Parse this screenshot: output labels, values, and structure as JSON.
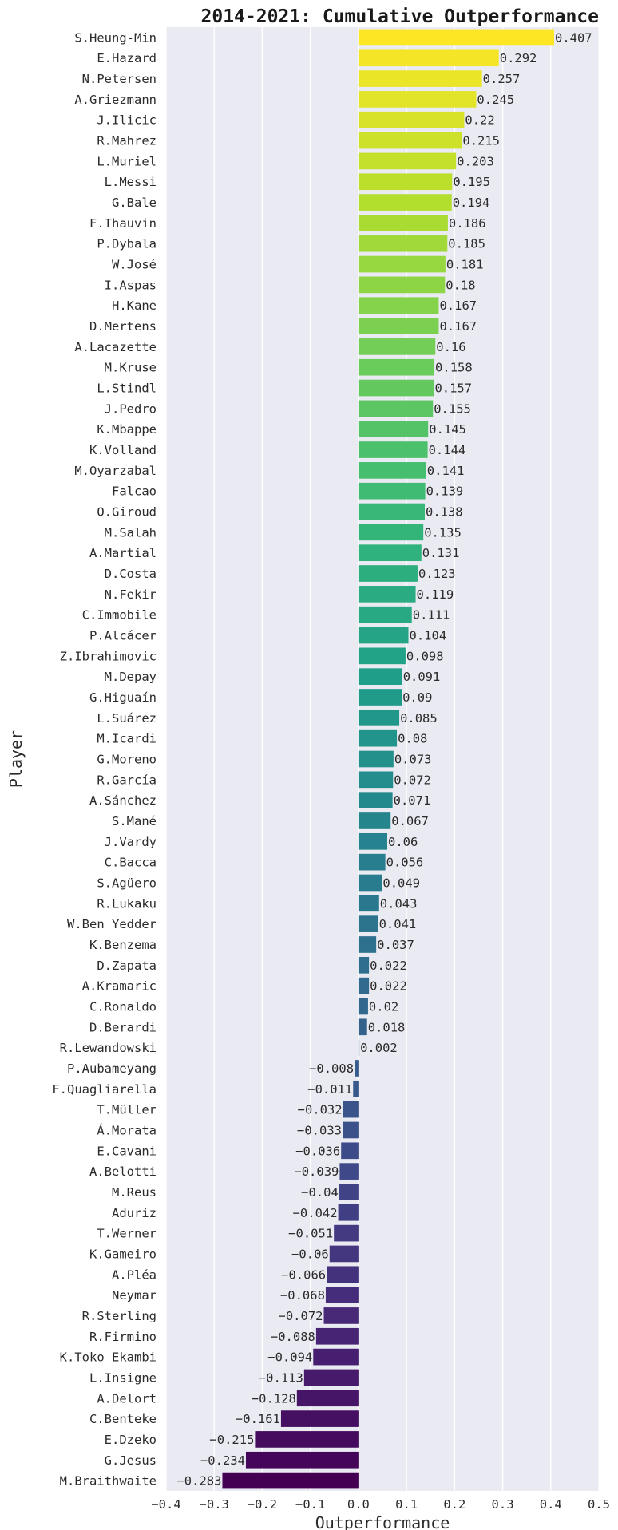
{
  "chart_data": {
    "type": "bar",
    "orientation": "horizontal",
    "title": "2014-2021: Cumulative Outperformance",
    "xlabel": "Outperformance",
    "ylabel": "Player",
    "xlim": [
      -0.4,
      0.5
    ],
    "xticks": [
      -0.4,
      -0.3,
      -0.2,
      -0.1,
      0.0,
      0.1,
      0.2,
      0.3,
      0.4,
      0.5
    ],
    "xtick_labels": [
      "−0.4",
      "−0.3",
      "−0.2",
      "−0.1",
      "0.0",
      "0.1",
      "0.2",
      "0.3",
      "0.4",
      "0.5"
    ],
    "grid": true,
    "background": "#eaeaf2",
    "colormap": "viridis",
    "categories": [
      "S.Heung-Min",
      "E.Hazard",
      "N.Petersen",
      "A.Griezmann",
      "J.Ilicic",
      "R.Mahrez",
      "L.Muriel",
      "L.Messi",
      "G.Bale",
      "F.Thauvin",
      "P.Dybala",
      "W.José",
      "I.Aspas",
      "H.Kane",
      "D.Mertens",
      "A.Lacazette",
      "M.Kruse",
      "L.Stindl",
      "J.Pedro",
      "K.Mbappe",
      "K.Volland",
      "M.Oyarzabal",
      "Falcao",
      "O.Giroud",
      "M.Salah",
      "A.Martial",
      "D.Costa",
      "N.Fekir",
      "C.Immobile",
      "P.Alcácer",
      "Z.Ibrahimovic",
      "M.Depay",
      "G.Higuaín",
      "L.Suárez",
      "M.Icardi",
      "G.Moreno",
      "R.García",
      "A.Sánchez",
      "S.Mané",
      "J.Vardy",
      "C.Bacca",
      "S.Agüero",
      "R.Lukaku",
      "W.Ben Yedder",
      "K.Benzema",
      "D.Zapata",
      "A.Kramaric",
      "C.Ronaldo",
      "D.Berardi",
      "R.Lewandowski",
      "P.Aubameyang",
      "F.Quagliarella",
      "T.Müller",
      "Á.Morata",
      "E.Cavani",
      "A.Belotti",
      "M.Reus",
      "Aduriz",
      "T.Werner",
      "K.Gameiro",
      "A.Pléa",
      "Neymar",
      "R.Sterling",
      "R.Firmino",
      "K.Toko Ekambi",
      "L.Insigne",
      "A.Delort",
      "C.Benteke",
      "E.Dzeko",
      "G.Jesus",
      "M.Braithwaite"
    ],
    "values": [
      0.407,
      0.292,
      0.257,
      0.245,
      0.22,
      0.215,
      0.203,
      0.195,
      0.194,
      0.186,
      0.185,
      0.181,
      0.18,
      0.167,
      0.167,
      0.16,
      0.158,
      0.157,
      0.155,
      0.145,
      0.144,
      0.141,
      0.139,
      0.138,
      0.135,
      0.131,
      0.123,
      0.119,
      0.111,
      0.104,
      0.098,
      0.091,
      0.09,
      0.085,
      0.08,
      0.073,
      0.072,
      0.071,
      0.067,
      0.06,
      0.056,
      0.049,
      0.043,
      0.041,
      0.037,
      0.022,
      0.022,
      0.02,
      0.018,
      0.002,
      -0.008,
      -0.011,
      -0.032,
      -0.033,
      -0.036,
      -0.039,
      -0.04,
      -0.042,
      -0.051,
      -0.06,
      -0.066,
      -0.068,
      -0.072,
      -0.088,
      -0.094,
      -0.113,
      -0.128,
      -0.161,
      -0.215,
      -0.234,
      -0.283
    ],
    "value_labels": [
      "0.407",
      "0.292",
      "0.257",
      "0.245",
      "0.22",
      "0.215",
      "0.203",
      "0.195",
      "0.194",
      "0.186",
      "0.185",
      "0.181",
      "0.18",
      "0.167",
      "0.167",
      "0.16",
      "0.158",
      "0.157",
      "0.155",
      "0.145",
      "0.144",
      "0.141",
      "0.139",
      "0.138",
      "0.135",
      "0.131",
      "0.123",
      "0.119",
      "0.111",
      "0.104",
      "0.098",
      "0.091",
      "0.09",
      "0.085",
      "0.08",
      "0.073",
      "0.072",
      "0.071",
      "0.067",
      "0.06",
      "0.056",
      "0.049",
      "0.043",
      "0.041",
      "0.037",
      "0.022",
      "0.022",
      "0.02",
      "0.018",
      "0.002",
      "−0.008",
      "−0.011",
      "−0.032",
      "−0.033",
      "−0.036",
      "−0.039",
      "−0.04",
      "−0.042",
      "−0.051",
      "−0.06",
      "−0.066",
      "−0.068",
      "−0.072",
      "−0.088",
      "−0.094",
      "−0.113",
      "−0.128",
      "−0.161",
      "−0.215",
      "−0.234",
      "−0.283"
    ]
  }
}
